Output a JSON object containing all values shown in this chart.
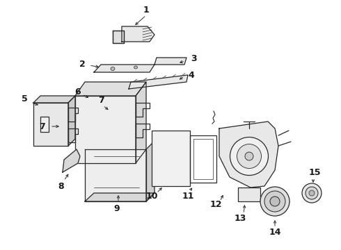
{
  "background_color": "#ffffff",
  "line_color": "#2a2a2a",
  "label_color": "#1a1a1a",
  "fig_width": 4.9,
  "fig_height": 3.6,
  "dpi": 100
}
